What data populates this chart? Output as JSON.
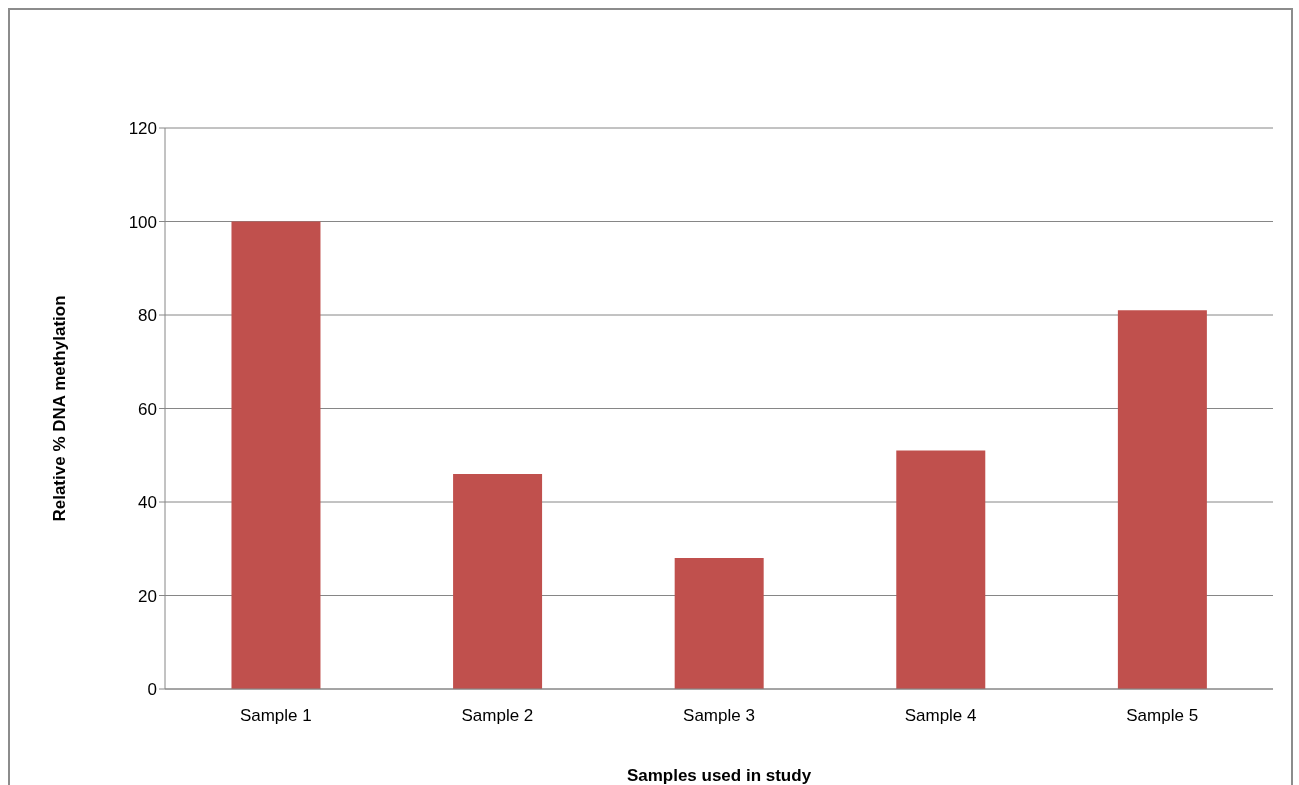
{
  "chart_data": {
    "type": "bar",
    "xlabel": "Samples used in study",
    "ylabel": "Relative % DNA methylation",
    "categories": [
      "Sample 1",
      "Sample 2",
      "Sample 3",
      "Sample 4",
      "Sample 5"
    ],
    "values": [
      100,
      46,
      28,
      51,
      81
    ],
    "color": "#c0504d",
    "ylim": [
      0,
      120
    ],
    "yticks": [
      0,
      20,
      40,
      60,
      80,
      100,
      120
    ],
    "grid": "y",
    "legend": false
  }
}
